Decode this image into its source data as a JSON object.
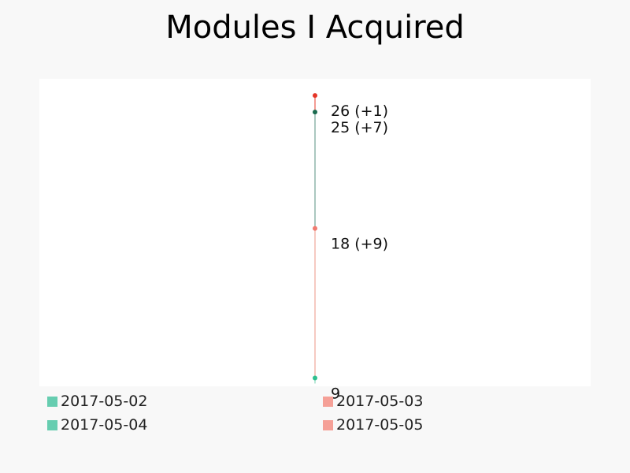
{
  "chart_data": {
    "type": "line",
    "title": "Modules I Acquired",
    "xlabel": "",
    "ylabel": "",
    "ylim": [
      8.5,
      27
    ],
    "grid": false,
    "legend_placement": "bottom",
    "points": [
      {
        "date": "2017-05-02",
        "value": 9,
        "label": "9",
        "color": "#2fbf8f"
      },
      {
        "date": "2017-05-03",
        "value": 18,
        "label": "18 (+9)",
        "color": "#f07b70"
      },
      {
        "date": "2017-05-04",
        "value": 25,
        "label": "25 (+7)",
        "color": "#1a6b4f"
      },
      {
        "date": "2017-05-05",
        "value": 26,
        "label": "26 (+1)",
        "color": "#e53527"
      }
    ],
    "segments": [
      {
        "from": 0,
        "to": 1,
        "color": "#f4b8ae"
      },
      {
        "from": 1,
        "to": 2,
        "color": "#8fb5aa"
      },
      {
        "from": 2,
        "to": 3,
        "color": "#f07b70"
      }
    ],
    "legend": [
      {
        "label": "2017-05-02",
        "color": "#66cdb0"
      },
      {
        "label": "2017-05-03",
        "color": "#f5a097"
      },
      {
        "label": "2017-05-04",
        "color": "#66cdb0"
      },
      {
        "label": "2017-05-05",
        "color": "#f5a097"
      }
    ]
  }
}
